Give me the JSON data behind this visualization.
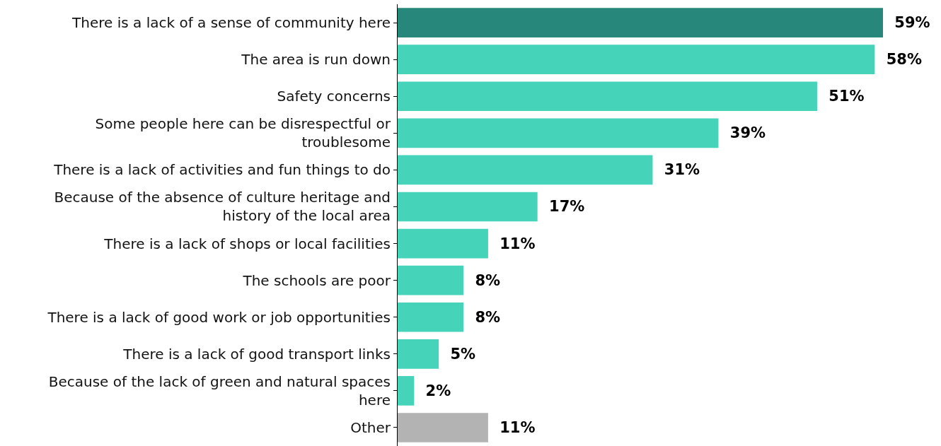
{
  "chart_data": {
    "type": "bar",
    "orientation": "horizontal",
    "categories": [
      "There is a lack of a sense of community here",
      "The area is run down",
      "Safety concerns",
      "Some people here can be disrespectful or\ntroublesome",
      "There is a lack of activities and fun things to do",
      "Because of the absence of culture heritage and\nhistory of the local area",
      "There is a lack of shops or local facilities",
      "The schools are poor",
      "There is a lack of good work or job opportunities",
      "There is a lack of good transport links",
      "Because of the lack of green and natural spaces\nhere",
      "Other"
    ],
    "values": [
      59,
      58,
      51,
      39,
      31,
      17,
      11,
      8,
      8,
      5,
      2,
      11
    ],
    "value_labels": [
      "59%",
      "58%",
      "51%",
      "39%",
      "31%",
      "17%",
      "11%",
      "8%",
      "8%",
      "5%",
      "2%",
      "11%"
    ],
    "colors": [
      "#26877a",
      "#45d3ba",
      "#45d3ba",
      "#45d3ba",
      "#45d3ba",
      "#45d3ba",
      "#45d3ba",
      "#45d3ba",
      "#45d3ba",
      "#45d3ba",
      "#45d3ba",
      "#b3b3b3"
    ]
  }
}
